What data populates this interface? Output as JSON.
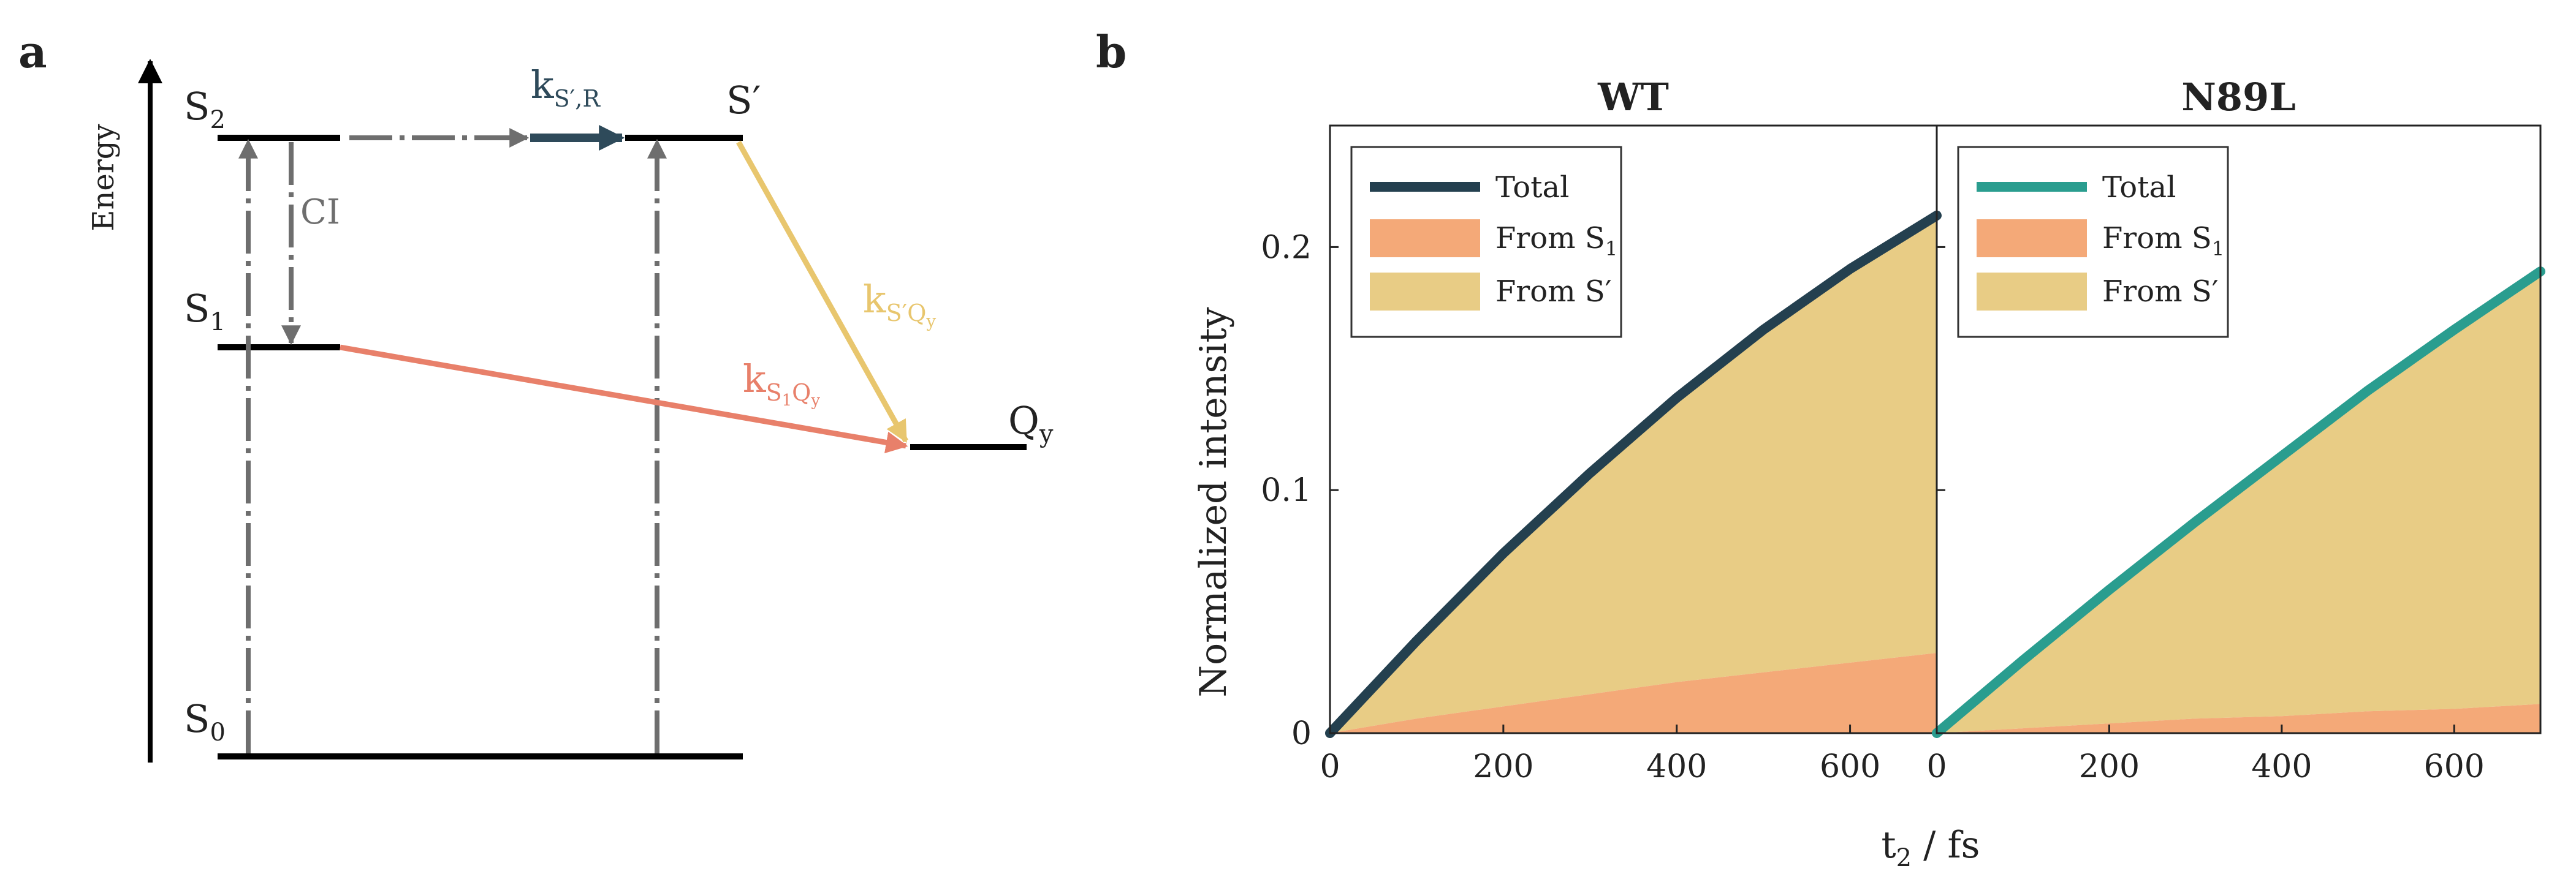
{
  "panel_a": {
    "panel_label": "a",
    "axis_label": "Energy",
    "states": {
      "S2": {
        "base": "S",
        "sub": "2"
      },
      "S1": {
        "base": "S",
        "sub": "1"
      },
      "S0": {
        "base": "S",
        "sub": "0"
      },
      "Sprime": "S′",
      "Qy": {
        "base": "Q",
        "sub": "y"
      }
    },
    "ci_label": "CI",
    "rates": {
      "k_SprimeR": {
        "base": "k",
        "sub": "S′,R"
      },
      "k_SprimeQy": {
        "base": "k",
        "sub": "S′Q",
        "subsub": "y"
      },
      "k_S1Qy": {
        "base": "k",
        "sub": "S",
        "subsub1": "1",
        "sub2": "Q",
        "subsub2": "y"
      }
    },
    "colors": {
      "level": "#000000",
      "dashed": "#6e6e6e",
      "k_SprimeR": "#2e4a5a",
      "k_SprimeQy": "#e8c66e",
      "k_S1Qy": "#e8806a"
    }
  },
  "panel_b": {
    "panel_label": "b",
    "ylabel": "Normalized intensity",
    "xlabel": {
      "base": "t",
      "sub": "2",
      "rest": " / fs"
    },
    "colors": {
      "wt_total": "#24404f",
      "n89l_total": "#2a9d8f",
      "from_s1": "#f4a978",
      "from_sprime": "#e8cc85"
    }
  },
  "chart_data": [
    {
      "type": "area",
      "title": "WT",
      "xlabel": "t2 / fs",
      "ylabel": "Normalized intensity",
      "xlim": [
        0,
        700
      ],
      "ylim": [
        0,
        0.25
      ],
      "xticks": [
        "0",
        "200",
        "400",
        "600"
      ],
      "yticks": [
        "0",
        "0.1",
        "0.2"
      ],
      "legend": {
        "position": "top-left",
        "total": "Total",
        "from_s1": {
          "base": "From S",
          "sub": "1"
        },
        "from_sprime": "From S′"
      },
      "x": [
        0,
        100,
        200,
        300,
        400,
        500,
        600,
        700
      ],
      "series": [
        {
          "name": "Total",
          "values": [
            0,
            0.038,
            0.074,
            0.107,
            0.138,
            0.166,
            0.191,
            0.213
          ]
        },
        {
          "name": "From S1",
          "values": [
            0,
            0.006,
            0.011,
            0.016,
            0.021,
            0.025,
            0.029,
            0.033
          ]
        },
        {
          "name": "From S′",
          "values": [
            0,
            0.032,
            0.063,
            0.091,
            0.117,
            0.141,
            0.162,
            0.18
          ]
        }
      ]
    },
    {
      "type": "area",
      "title": "N89L",
      "xlabel": "t2 / fs",
      "ylabel": "Normalized intensity",
      "xlim": [
        0,
        700
      ],
      "ylim": [
        0,
        0.25
      ],
      "xticks": [
        "0",
        "200",
        "400",
        "600"
      ],
      "yticks": [
        "0",
        "0.1",
        "0.2"
      ],
      "legend": {
        "position": "top-left",
        "total": "Total",
        "from_s1": {
          "base": "From S",
          "sub": "1"
        },
        "from_sprime": "From S′"
      },
      "x": [
        0,
        100,
        200,
        300,
        400,
        500,
        600,
        700
      ],
      "series": [
        {
          "name": "Total",
          "values": [
            0,
            0.03,
            0.059,
            0.087,
            0.114,
            0.141,
            0.166,
            0.19
          ]
        },
        {
          "name": "From S1",
          "values": [
            0,
            0.002,
            0.004,
            0.006,
            0.007,
            0.009,
            0.01,
            0.012
          ]
        },
        {
          "name": "From S′",
          "values": [
            0,
            0.028,
            0.055,
            0.081,
            0.107,
            0.132,
            0.156,
            0.178
          ]
        }
      ]
    }
  ]
}
